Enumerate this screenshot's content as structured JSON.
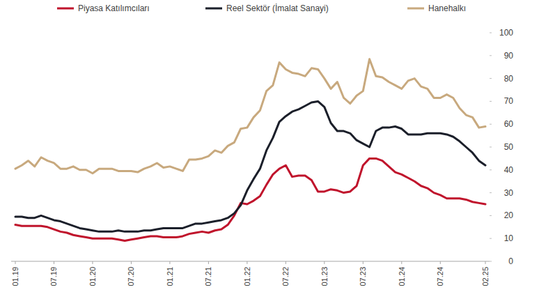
{
  "chart_data": {
    "type": "line",
    "categories": [
      "01.19",
      null,
      null,
      null,
      null,
      null,
      "07.19",
      null,
      null,
      null,
      null,
      null,
      "01.20",
      null,
      null,
      null,
      null,
      null,
      "07.20",
      null,
      null,
      null,
      null,
      null,
      "01.21",
      null,
      null,
      null,
      null,
      null,
      "07.21",
      null,
      null,
      null,
      null,
      null,
      "01.22",
      null,
      null,
      null,
      null,
      null,
      "07.22",
      null,
      null,
      null,
      null,
      null,
      "01.23",
      null,
      null,
      null,
      null,
      null,
      "07.23",
      null,
      null,
      null,
      null,
      null,
      "01.24",
      null,
      null,
      null,
      null,
      null,
      "07.24",
      null,
      null,
      null,
      null,
      null,
      null,
      "02.25"
    ],
    "series": [
      {
        "name": "Piyasa Katılımcıları",
        "color": "#c0142c",
        "values": [
          16,
          15.5,
          15.5,
          15.5,
          15.5,
          15,
          14,
          13,
          12.5,
          11.5,
          11,
          10.5,
          10,
          10,
          10,
          10,
          9.5,
          9,
          9.5,
          10,
          10.5,
          11,
          11,
          10.5,
          10.5,
          10.5,
          11,
          12,
          12.5,
          13,
          12.5,
          13.5,
          14,
          16,
          20,
          25.5,
          25,
          26.5,
          28.5,
          33.5,
          38,
          40.5,
          42,
          37,
          37.5,
          37.5,
          35.5,
          30.5,
          30.5,
          31.5,
          31,
          30,
          30.5,
          33,
          42,
          45,
          45,
          44,
          41.5,
          39,
          38,
          36.5,
          35,
          33,
          32,
          30,
          29,
          27.5,
          27.5,
          27.5,
          27,
          26,
          25.5,
          25
        ]
      },
      {
        "name": "Reel Sektör (İmalat Sanayi)",
        "color": "#1b1f2a",
        "values": [
          19.5,
          19.5,
          19,
          19,
          20,
          19,
          18,
          17.5,
          16.5,
          15.5,
          14.5,
          14,
          13.5,
          13,
          13,
          13,
          13.5,
          13,
          13,
          13,
          13.5,
          13.5,
          14,
          14.5,
          14.5,
          14.5,
          14.5,
          15.5,
          16.5,
          16.5,
          17,
          17.5,
          18,
          19,
          21,
          24.5,
          31,
          36,
          40.5,
          48.5,
          54,
          61,
          63.5,
          65.5,
          66.5,
          68,
          69.5,
          70,
          67.5,
          60.5,
          57,
          57,
          56,
          53,
          51.5,
          50,
          57,
          58.5,
          58.5,
          59,
          58,
          55.5,
          55.5,
          55.5,
          56,
          56,
          56,
          55.5,
          54.5,
          52.5,
          50,
          47.5,
          44,
          42
        ]
      },
      {
        "name": "Hanehalkı",
        "color": "#c8a97e",
        "values": [
          40.5,
          42,
          44,
          41.5,
          45.5,
          44,
          43,
          40.5,
          40.5,
          41.5,
          40,
          40,
          38.5,
          40.5,
          40.5,
          40.5,
          39.5,
          39.5,
          39.5,
          39,
          40.5,
          41.5,
          43,
          41,
          41.5,
          40.5,
          39.5,
          44.5,
          44.5,
          45,
          46,
          48.5,
          47.5,
          50.5,
          52,
          58,
          58.5,
          63,
          66,
          74.5,
          77,
          87,
          84,
          82.5,
          82,
          81,
          84.5,
          84,
          80,
          75.5,
          78.5,
          71.5,
          69,
          72.5,
          74.5,
          88.5,
          81,
          80.5,
          78.5,
          77,
          75.5,
          79,
          80,
          76.5,
          75.5,
          71.5,
          71.5,
          73,
          71.5,
          67,
          64,
          63,
          58.5,
          59
        ]
      }
    ],
    "ylim": [
      0,
      100
    ],
    "yticks": [
      0,
      10,
      20,
      30,
      40,
      50,
      60,
      70,
      80,
      90,
      100
    ],
    "grid": false,
    "legend": "top"
  }
}
